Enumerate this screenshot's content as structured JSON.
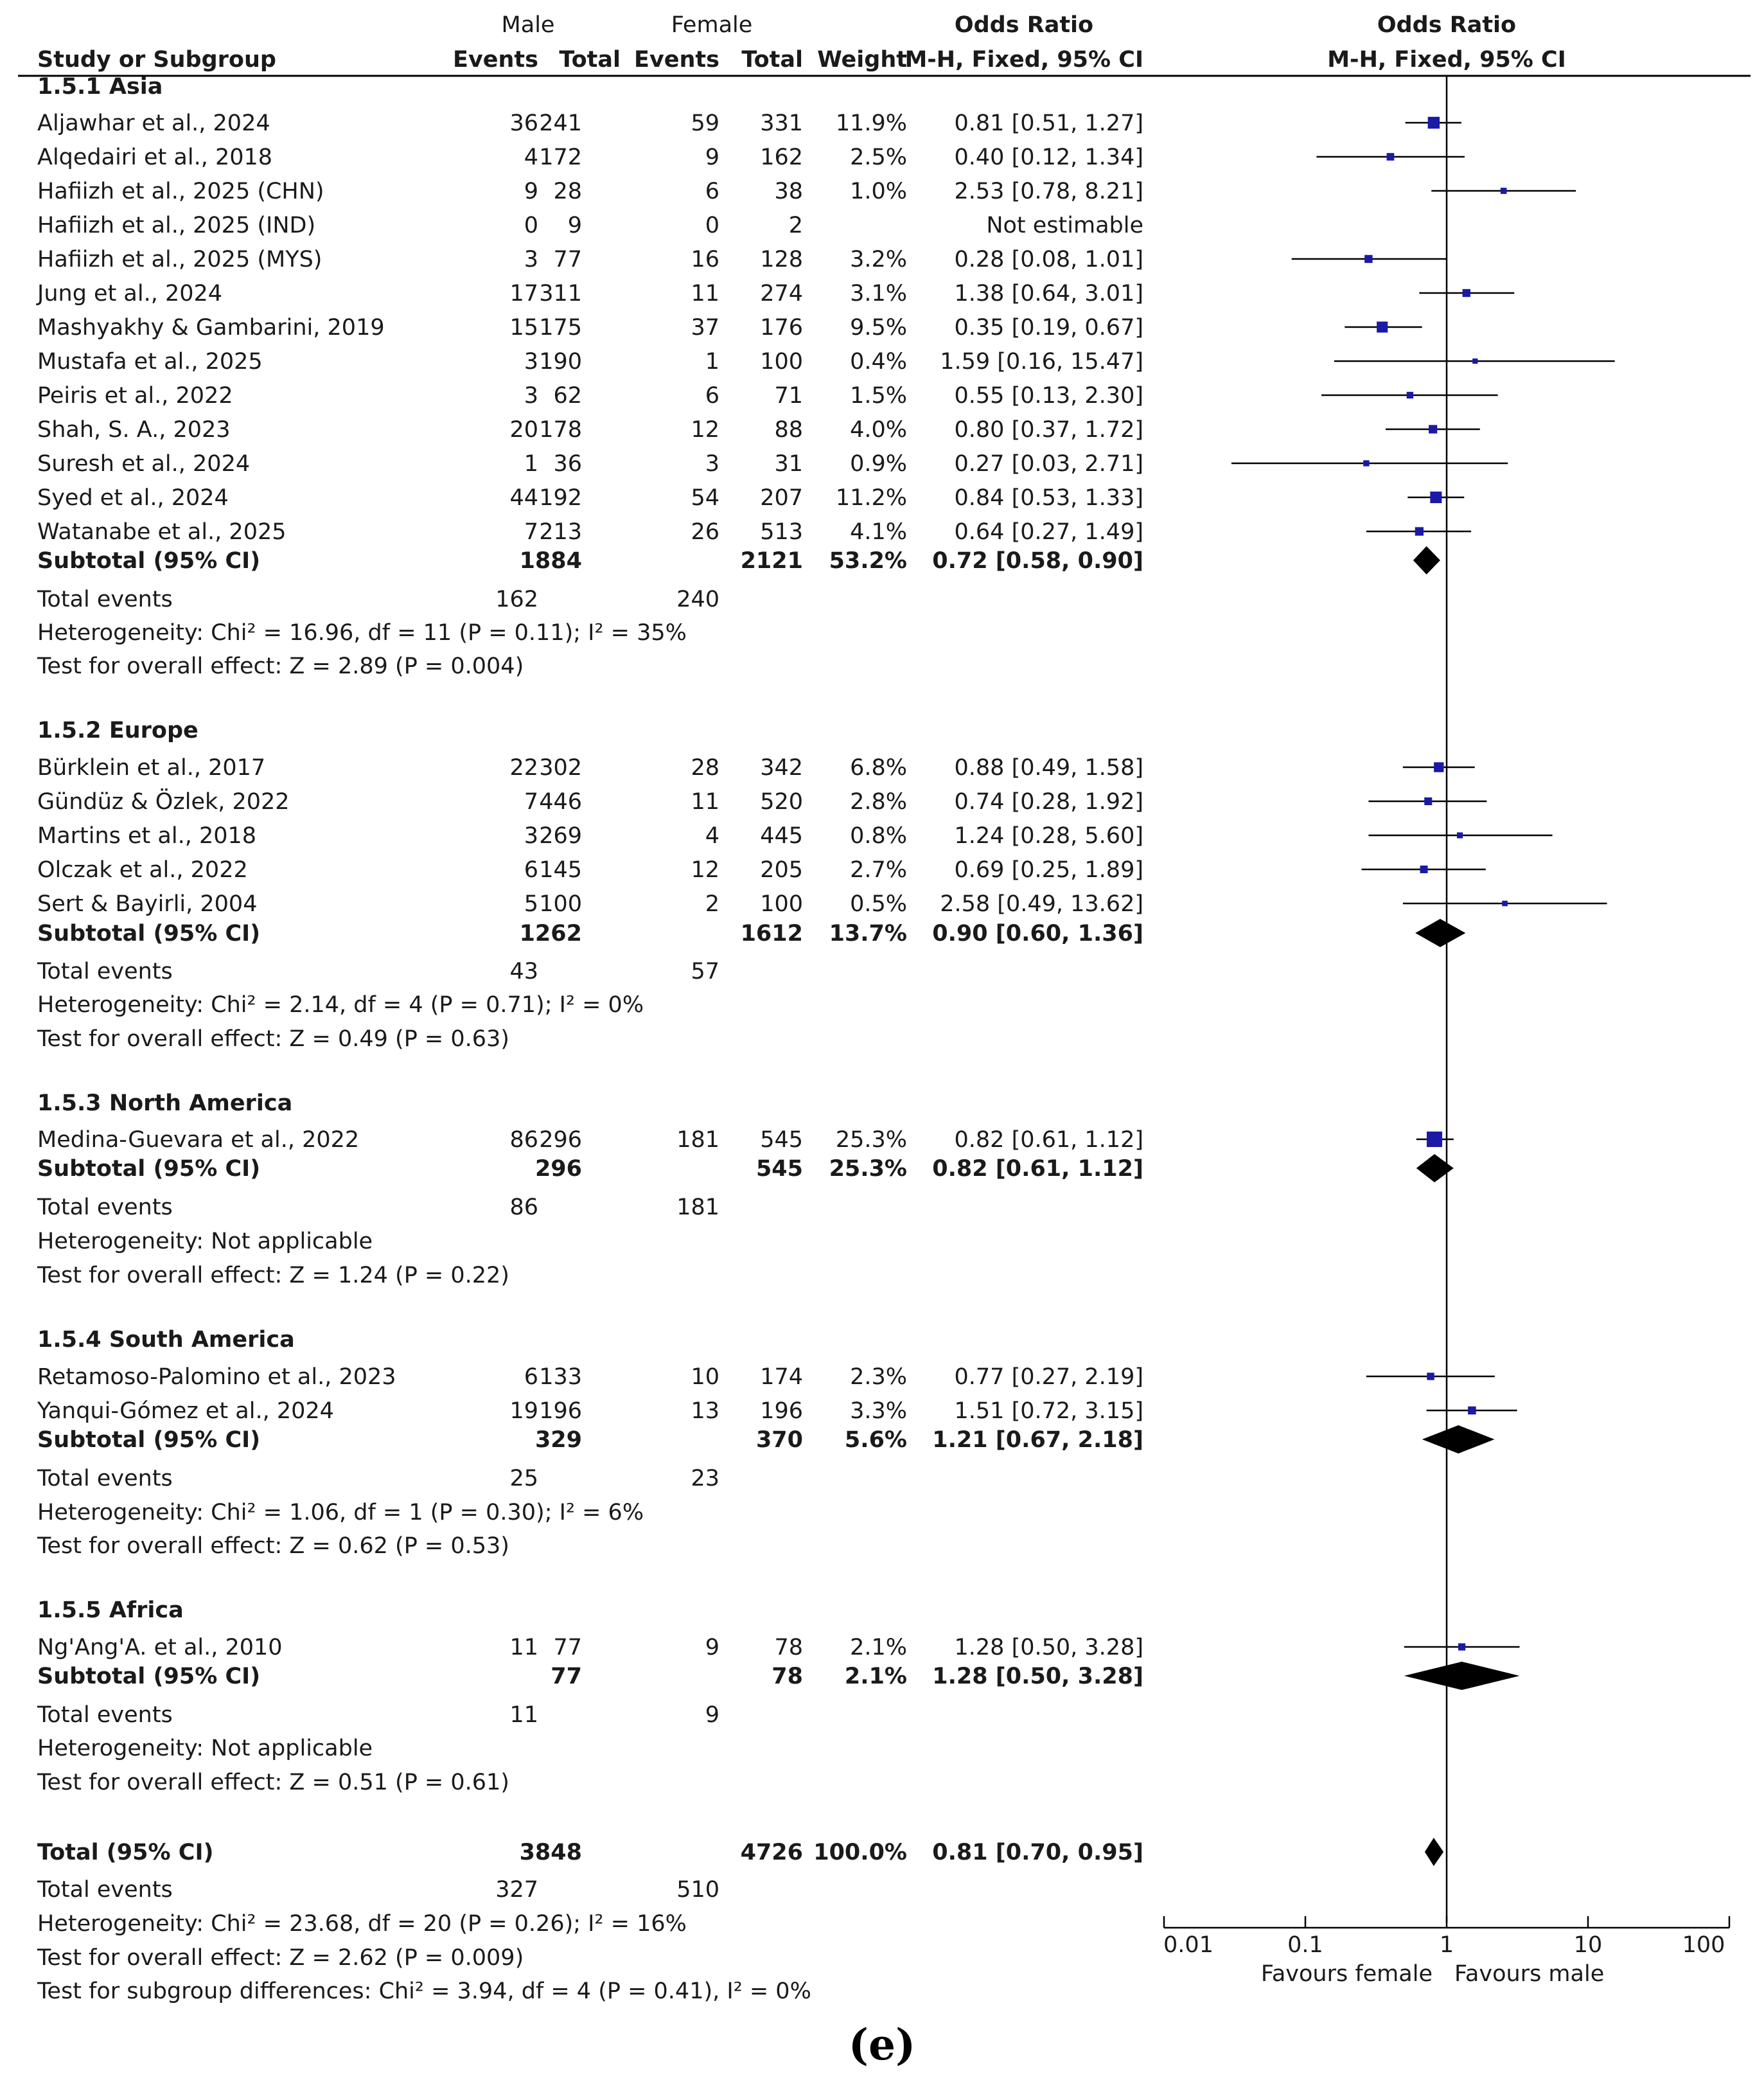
{
  "chart_data": {
    "type": "forest",
    "title": "",
    "scale": "log",
    "xlim": [
      0.01,
      100
    ],
    "axis_ticks": [
      "0.01",
      "0.1",
      "1",
      "10",
      "100"
    ],
    "axis_tick_values": [
      0.01,
      0.1,
      1,
      10,
      100
    ],
    "favours_left": "Favours female",
    "favours_right": "Favours male",
    "caption": "(e)",
    "headers": {
      "group_male": "Male",
      "group_female": "Female",
      "or_col_top": "Odds Ratio",
      "plot_col_top": "Odds Ratio",
      "study": "Study or Subgroup",
      "events1": "Events",
      "total1": "Total",
      "events2": "Events",
      "total2": "Total",
      "weight": "Weight",
      "method": "M-H, Fixed, 95% CI",
      "plot_method": "M-H, Fixed, 95% CI"
    },
    "subgroups": [
      {
        "title": "1.5.1 Asia",
        "studies": [
          {
            "name": "Aljawhar et al., 2024",
            "e1": "36",
            "n1": "241",
            "e2": "59",
            "n2": "331",
            "weight": "11.9%",
            "ci": "0.81 [0.51, 1.27]",
            "or": 0.81,
            "lo": 0.51,
            "hi": 1.27,
            "w": 11.9
          },
          {
            "name": "Alqedairi et al., 2018",
            "e1": "4",
            "n1": "172",
            "e2": "9",
            "n2": "162",
            "weight": "2.5%",
            "ci": "0.40 [0.12, 1.34]",
            "or": 0.4,
            "lo": 0.12,
            "hi": 1.34,
            "w": 2.5
          },
          {
            "name": "Hafiizh et al., 2025 (CHN)",
            "e1": "9",
            "n1": "28",
            "e2": "6",
            "n2": "38",
            "weight": "1.0%",
            "ci": "2.53 [0.78, 8.21]",
            "or": 2.53,
            "lo": 0.78,
            "hi": 8.21,
            "w": 1.0
          },
          {
            "name": "Hafiizh et al., 2025 (IND)",
            "e1": "0",
            "n1": "9",
            "e2": "0",
            "n2": "2",
            "weight": "",
            "ci": "Not estimable",
            "or": null,
            "lo": null,
            "hi": null,
            "w": 0
          },
          {
            "name": "Hafiizh et al., 2025 (MYS)",
            "e1": "3",
            "n1": "77",
            "e2": "16",
            "n2": "128",
            "weight": "3.2%",
            "ci": "0.28 [0.08, 1.01]",
            "or": 0.28,
            "lo": 0.08,
            "hi": 1.01,
            "w": 3.2
          },
          {
            "name": "Jung et al.,  2024",
            "e1": "17",
            "n1": "311",
            "e2": "11",
            "n2": "274",
            "weight": "3.1%",
            "ci": "1.38 [0.64, 3.01]",
            "or": 1.38,
            "lo": 0.64,
            "hi": 3.01,
            "w": 3.1
          },
          {
            "name": "Mashyakhy & Gambarini, 2019",
            "e1": "15",
            "n1": "175",
            "e2": "37",
            "n2": "176",
            "weight": "9.5%",
            "ci": "0.35 [0.19, 0.67]",
            "or": 0.35,
            "lo": 0.19,
            "hi": 0.67,
            "w": 9.5
          },
          {
            "name": "Mustafa et al.,  2025",
            "e1": "3",
            "n1": "190",
            "e2": "1",
            "n2": "100",
            "weight": "0.4%",
            "ci": "1.59 [0.16, 15.47]",
            "or": 1.59,
            "lo": 0.16,
            "hi": 15.47,
            "w": 0.4
          },
          {
            "name": "Peiris et al., 2022",
            "e1": "3",
            "n1": "62",
            "e2": "6",
            "n2": "71",
            "weight": "1.5%",
            "ci": "0.55 [0.13, 2.30]",
            "or": 0.55,
            "lo": 0.13,
            "hi": 2.3,
            "w": 1.5
          },
          {
            "name": "Shah, S. A., 2023",
            "e1": "20",
            "n1": "178",
            "e2": "12",
            "n2": "88",
            "weight": "4.0%",
            "ci": "0.80 [0.37, 1.72]",
            "or": 0.8,
            "lo": 0.37,
            "hi": 1.72,
            "w": 4.0
          },
          {
            "name": "Suresh et al.,  2024",
            "e1": "1",
            "n1": "36",
            "e2": "3",
            "n2": "31",
            "weight": "0.9%",
            "ci": "0.27 [0.03, 2.71]",
            "or": 0.27,
            "lo": 0.03,
            "hi": 2.71,
            "w": 0.9
          },
          {
            "name": "Syed et al., 2024",
            "e1": "44",
            "n1": "192",
            "e2": "54",
            "n2": "207",
            "weight": "11.2%",
            "ci": "0.84 [0.53, 1.33]",
            "or": 0.84,
            "lo": 0.53,
            "hi": 1.33,
            "w": 11.2
          },
          {
            "name": "Watanabe et al., 2025",
            "e1": "7",
            "n1": "213",
            "e2": "26",
            "n2": "513",
            "weight": "4.1%",
            "ci": "0.64 [0.27, 1.49]",
            "or": 0.64,
            "lo": 0.27,
            "hi": 1.49,
            "w": 4.1
          }
        ],
        "subtotal": {
          "label": "Subtotal (95% CI)",
          "n1": "1884",
          "n2": "2121",
          "weight": "53.2%",
          "ci": "0.72 [0.58, 0.90]",
          "or": 0.72,
          "lo": 0.58,
          "hi": 0.9
        },
        "total_events": {
          "label": "Total events",
          "e1": "162",
          "e2": "240"
        },
        "heterogeneity": "Heterogeneity: Chi² = 16.96, df = 11 (P = 0.11); I² = 35%",
        "overall": "Test for overall effect: Z = 2.89 (P = 0.004)"
      },
      {
        "title": "1.5.2 Europe",
        "studies": [
          {
            "name": "Bürklein et al., 2017",
            "e1": "22",
            "n1": "302",
            "e2": "28",
            "n2": "342",
            "weight": "6.8%",
            "ci": "0.88 [0.49, 1.58]",
            "or": 0.88,
            "lo": 0.49,
            "hi": 1.58,
            "w": 6.8
          },
          {
            "name": "Gündüz & Özlek, 2022",
            "e1": "7",
            "n1": "446",
            "e2": "11",
            "n2": "520",
            "weight": "2.8%",
            "ci": "0.74 [0.28, 1.92]",
            "or": 0.74,
            "lo": 0.28,
            "hi": 1.92,
            "w": 2.8
          },
          {
            "name": "Martins et al., 2018",
            "e1": "3",
            "n1": "269",
            "e2": "4",
            "n2": "445",
            "weight": "0.8%",
            "ci": "1.24 [0.28, 5.60]",
            "or": 1.24,
            "lo": 0.28,
            "hi": 5.6,
            "w": 0.8
          },
          {
            "name": "Olczak et al., 2022",
            "e1": "6",
            "n1": "145",
            "e2": "12",
            "n2": "205",
            "weight": "2.7%",
            "ci": "0.69 [0.25, 1.89]",
            "or": 0.69,
            "lo": 0.25,
            "hi": 1.89,
            "w": 2.7
          },
          {
            "name": "Sert & Bayirli, 2004",
            "e1": "5",
            "n1": "100",
            "e2": "2",
            "n2": "100",
            "weight": "0.5%",
            "ci": "2.58 [0.49, 13.62]",
            "or": 2.58,
            "lo": 0.49,
            "hi": 13.62,
            "w": 0.5
          }
        ],
        "subtotal": {
          "label": "Subtotal (95% CI)",
          "n1": "1262",
          "n2": "1612",
          "weight": "13.7%",
          "ci": "0.90 [0.60, 1.36]",
          "or": 0.9,
          "lo": 0.6,
          "hi": 1.36
        },
        "total_events": {
          "label": "Total events",
          "e1": "43",
          "e2": "57"
        },
        "heterogeneity": "Heterogeneity: Chi² = 2.14, df = 4 (P = 0.71); I² = 0%",
        "overall": "Test for overall effect: Z = 0.49 (P = 0.63)"
      },
      {
        "title": "1.5.3 North America",
        "studies": [
          {
            "name": "Medina-Guevara et al., 2022",
            "e1": "86",
            "n1": "296",
            "e2": "181",
            "n2": "545",
            "weight": "25.3%",
            "ci": "0.82 [0.61, 1.12]",
            "or": 0.82,
            "lo": 0.61,
            "hi": 1.12,
            "w": 25.3
          }
        ],
        "subtotal": {
          "label": "Subtotal (95% CI)",
          "n1": "296",
          "n2": "545",
          "weight": "25.3%",
          "ci": "0.82 [0.61, 1.12]",
          "or": 0.82,
          "lo": 0.61,
          "hi": 1.12
        },
        "total_events": {
          "label": "Total events",
          "e1": "86",
          "e2": "181"
        },
        "heterogeneity": "Heterogeneity: Not applicable",
        "overall": "Test for overall effect: Z = 1.24 (P = 0.22)"
      },
      {
        "title": "1.5.4 South America",
        "studies": [
          {
            "name": "Retamoso-Palomino et al., 2023",
            "e1": "6",
            "n1": "133",
            "e2": "10",
            "n2": "174",
            "weight": "2.3%",
            "ci": "0.77 [0.27, 2.19]",
            "or": 0.77,
            "lo": 0.27,
            "hi": 2.19,
            "w": 2.3
          },
          {
            "name": "Yanqui-Gómez et al., 2024",
            "e1": "19",
            "n1": "196",
            "e2": "13",
            "n2": "196",
            "weight": "3.3%",
            "ci": "1.51 [0.72, 3.15]",
            "or": 1.51,
            "lo": 0.72,
            "hi": 3.15,
            "w": 3.3
          }
        ],
        "subtotal": {
          "label": "Subtotal (95% CI)",
          "n1": "329",
          "n2": "370",
          "weight": "5.6%",
          "ci": "1.21 [0.67, 2.18]",
          "or": 1.21,
          "lo": 0.67,
          "hi": 2.18
        },
        "total_events": {
          "label": "Total events",
          "e1": "25",
          "e2": "23"
        },
        "heterogeneity": "Heterogeneity: Chi² = 1.06, df = 1 (P = 0.30); I² = 6%",
        "overall": "Test for overall effect: Z = 0.62 (P = 0.53)"
      },
      {
        "title": "1.5.5 Africa",
        "studies": [
          {
            "name": "Ng'Ang'A. et al., 2010",
            "e1": "11",
            "n1": "77",
            "e2": "9",
            "n2": "78",
            "weight": "2.1%",
            "ci": "1.28 [0.50, 3.28]",
            "or": 1.28,
            "lo": 0.5,
            "hi": 3.28,
            "w": 2.1
          }
        ],
        "subtotal": {
          "label": "Subtotal (95% CI)",
          "n1": "77",
          "n2": "78",
          "weight": "2.1%",
          "ci": "1.28 [0.50, 3.28]",
          "or": 1.28,
          "lo": 0.5,
          "hi": 3.28
        },
        "total_events": {
          "label": "Total events",
          "e1": "11",
          "e2": "9"
        },
        "heterogeneity": "Heterogeneity: Not applicable",
        "overall": "Test for overall effect: Z = 0.51 (P = 0.61)"
      }
    ],
    "total": {
      "label": "Total (95% CI)",
      "n1": "3848",
      "n2": "4726",
      "weight": "100.0%",
      "ci": "0.81 [0.70, 0.95]",
      "or": 0.81,
      "lo": 0.7,
      "hi": 0.95,
      "total_events": {
        "label": "Total events",
        "e1": "327",
        "e2": "510"
      },
      "heterogeneity": "Heterogeneity: Chi² = 23.68, df = 20 (P = 0.26); I² = 16%",
      "overall": "Test for overall effect: Z = 2.62 (P = 0.009)",
      "subgroup_diff": "Test for subgroup differences: Chi² = 3.94, df = 4 (P = 0.41), I² = 0%"
    },
    "colors": {
      "square": "#1a1aa6",
      "diamond": "#000000",
      "text": "#1a1a1a",
      "line": "#000000"
    }
  }
}
